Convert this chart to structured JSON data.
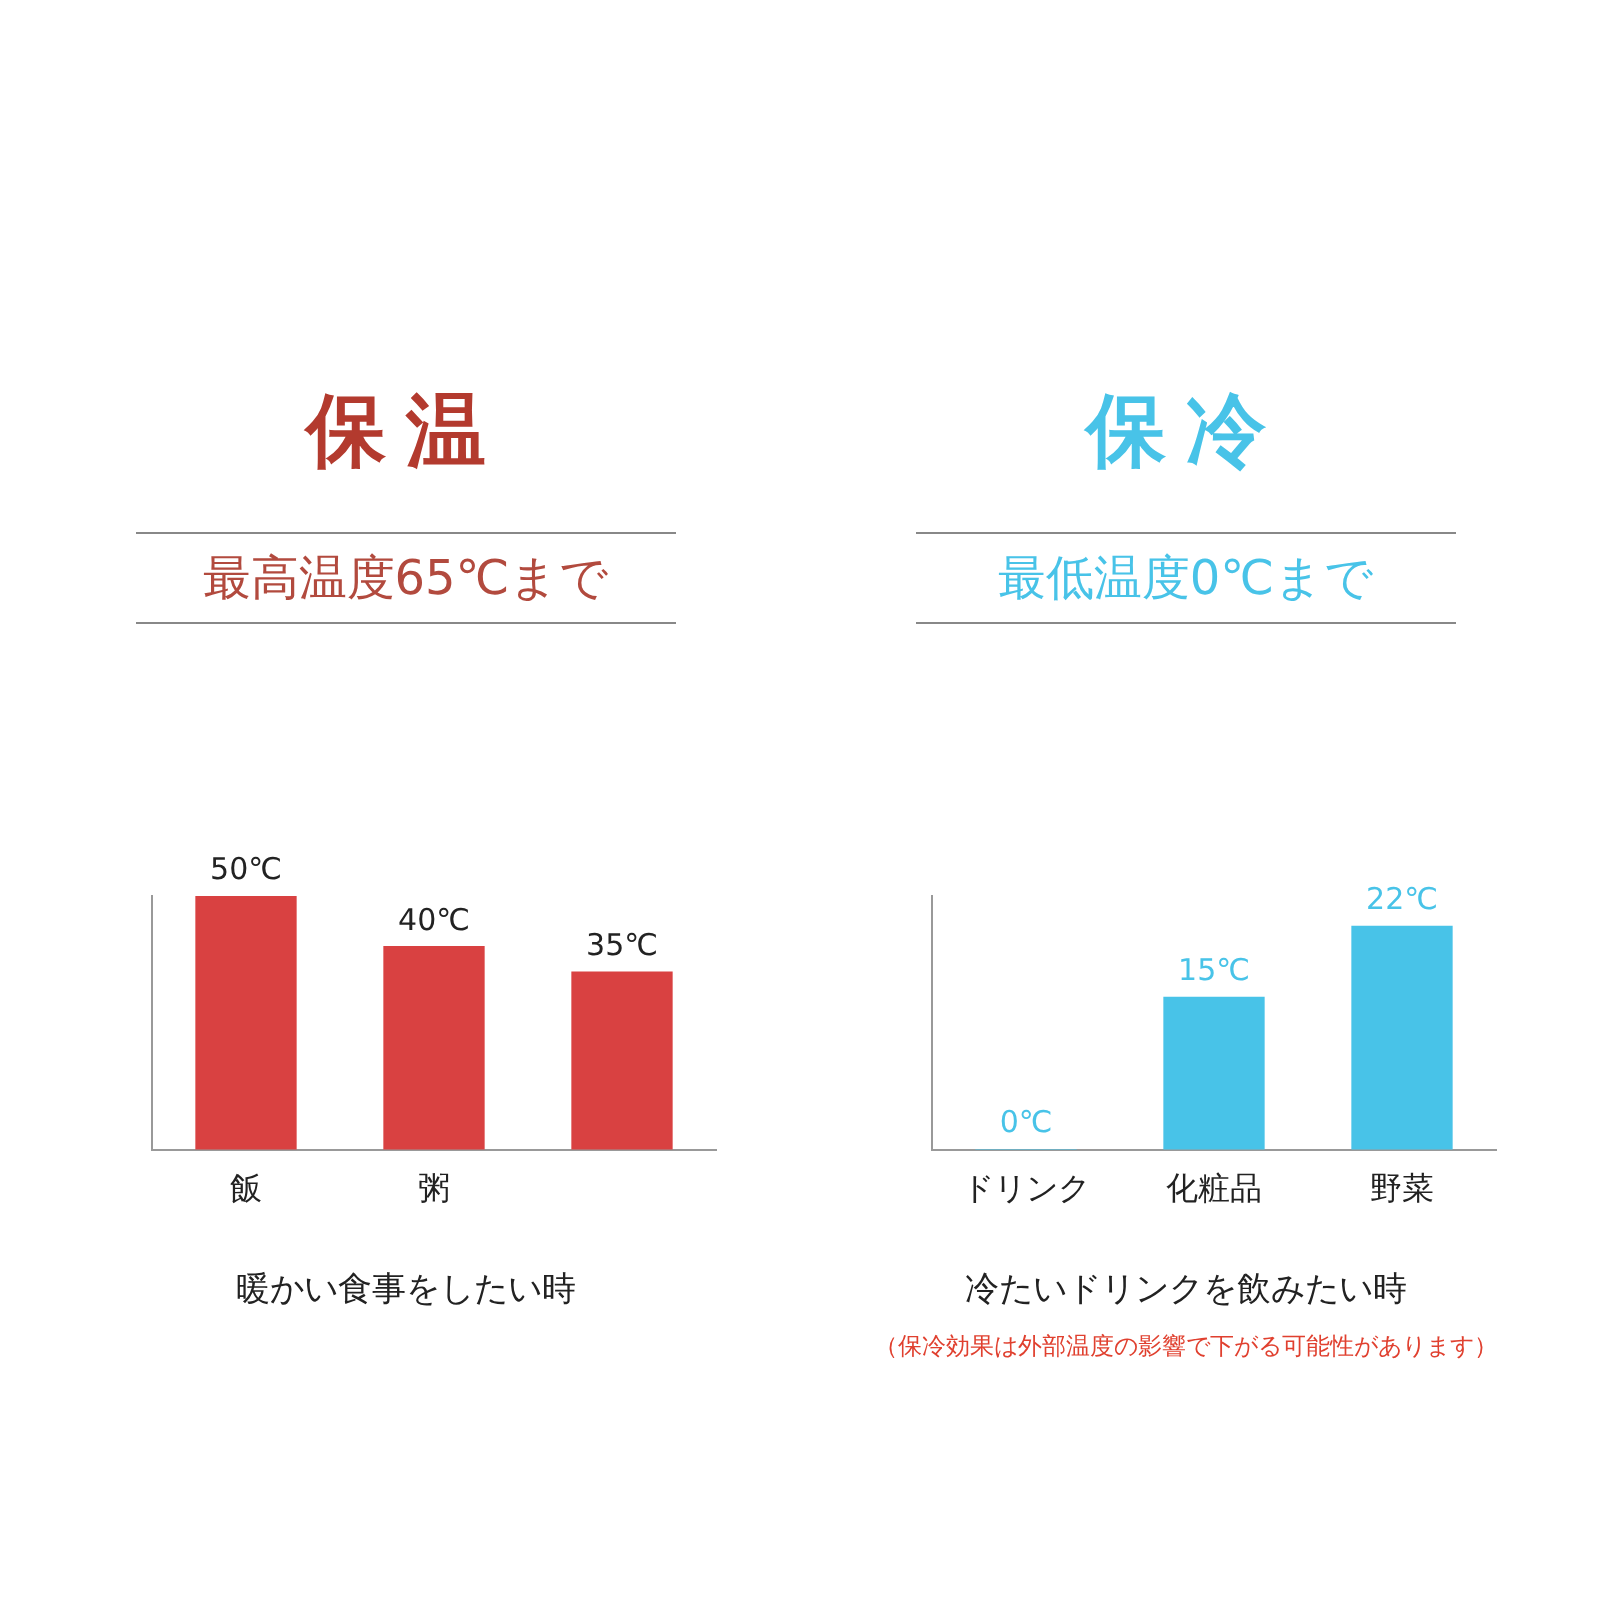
{
  "chart_data": [
    {
      "type": "bar",
      "title": "保温",
      "subtitle": "最高温度65℃まで",
      "xlabel": "暖かい食事をしたい時",
      "categories": [
        "飯",
        "粥",
        null
      ],
      "series": [
        {
          "color": "#d94141",
          "values": [
            50,
            40,
            35
          ],
          "value_labels": [
            "50℃",
            "40℃",
            "35℃"
          ]
        }
      ]
    },
    {
      "type": "bar",
      "title": "保冷",
      "subtitle": "最低温度0℃まで",
      "xlabel": "冷たいドリンクを飲みたい時",
      "categories": [
        "ドリンク",
        "化粧品",
        "野菜"
      ],
      "series": [
        {
          "color": "#48c3e8",
          "values": [
            0,
            15,
            22
          ],
          "value_labels": [
            "0℃",
            "15℃",
            "22℃"
          ]
        }
      ],
      "annotations": [
        "（保冷効果は外部温度の影響で下がる可能性があります）"
      ]
    }
  ]
}
